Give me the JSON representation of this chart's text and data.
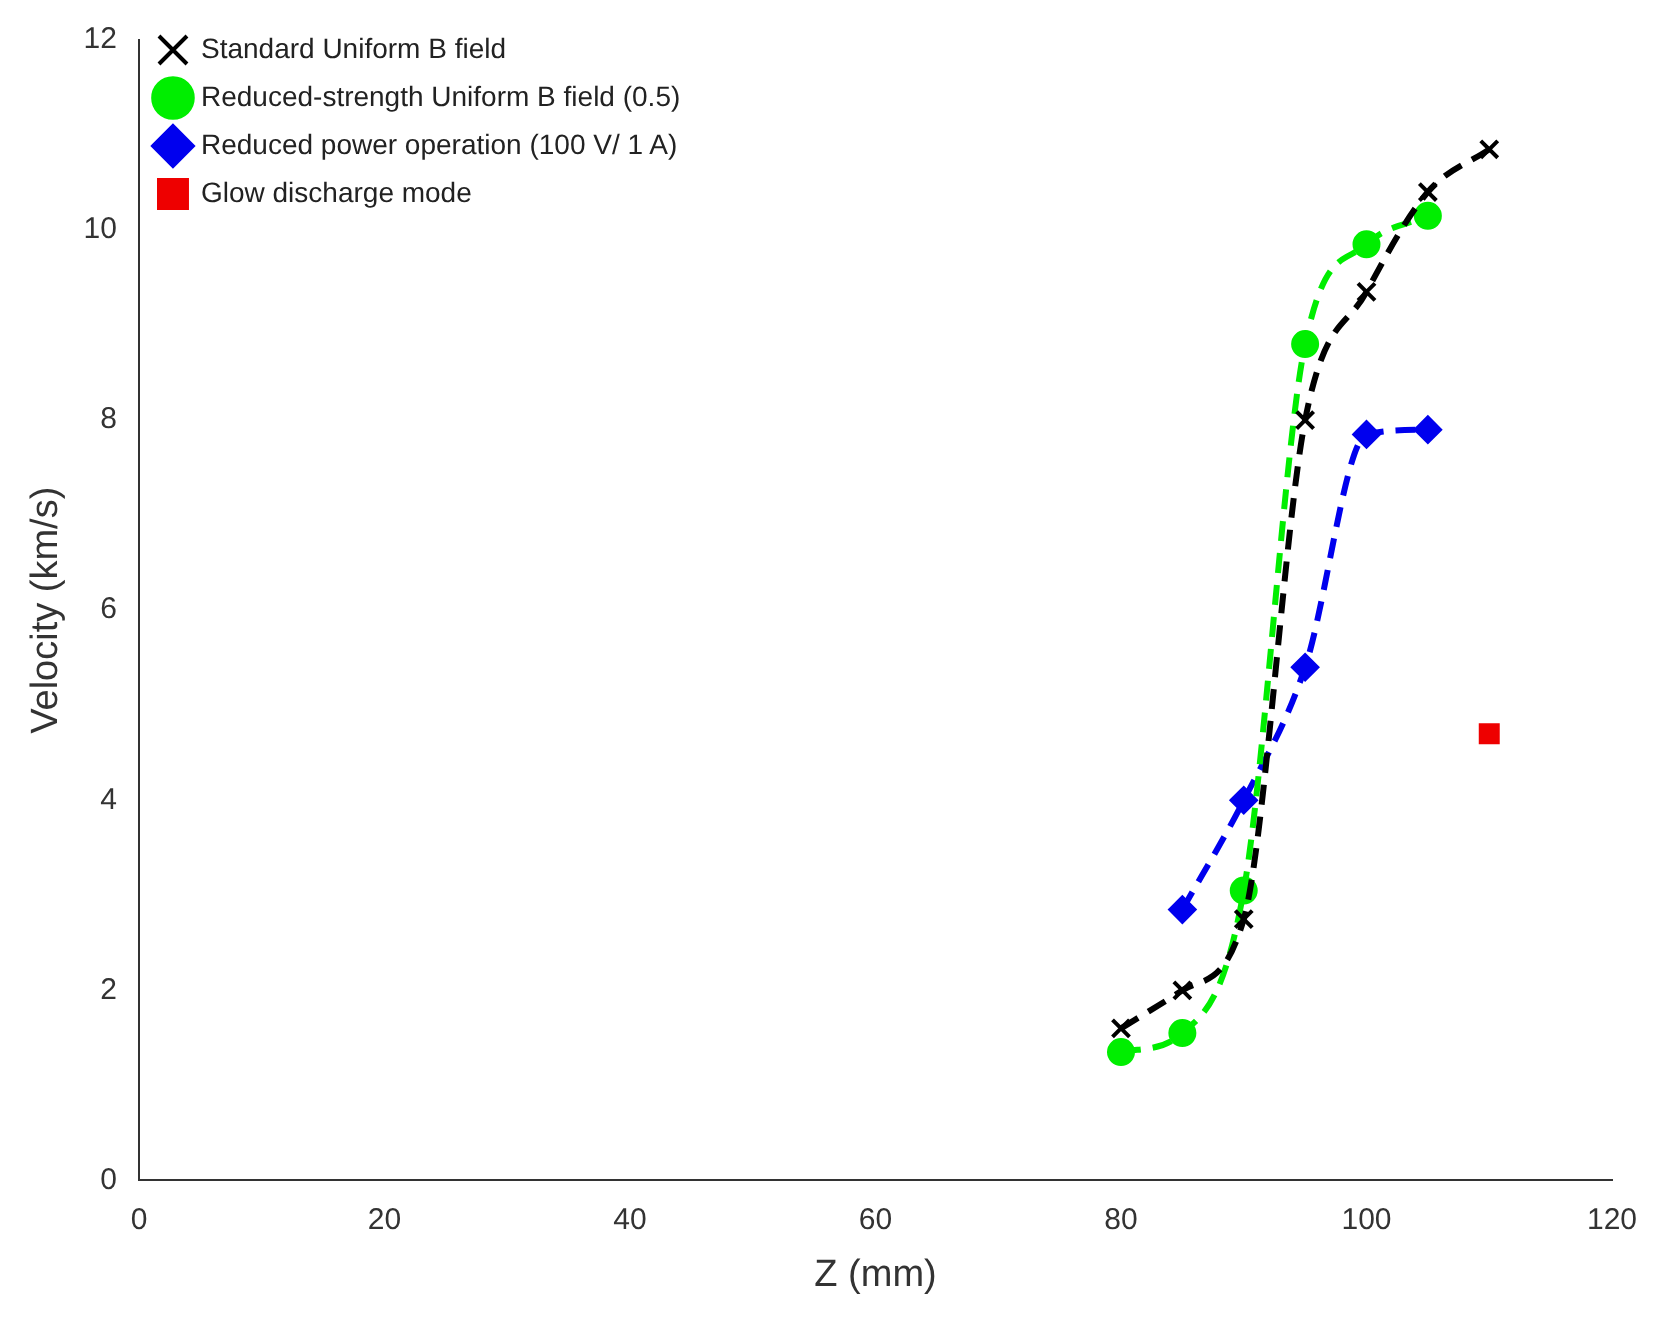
{
  "chart_data": {
    "type": "line",
    "xlabel": "Z (mm)",
    "ylabel": "Velocity (km/s)",
    "xlim": [
      0,
      120
    ],
    "xticks": [
      0,
      20,
      40,
      60,
      80,
      100,
      120
    ],
    "ylim": [
      0,
      12
    ],
    "yticks": [
      0,
      2,
      4,
      6,
      8,
      10,
      12
    ],
    "grid": false,
    "legend": "top left",
    "line_style": "dashed",
    "series": [
      {
        "name": "Standard Uniform B field",
        "color": "#000000",
        "marker": "cross",
        "x": [
          80,
          85,
          90,
          95,
          100,
          105,
          110
        ],
        "values": [
          1.6,
          2.0,
          2.75,
          8.0,
          9.35,
          10.4,
          10.85
        ]
      },
      {
        "name": "Reduced-strength Uniform B field (0.5)",
        "color": "#00ee00",
        "marker": "circle",
        "x": [
          80,
          85,
          90,
          95,
          100,
          105
        ],
        "values": [
          1.35,
          1.55,
          3.05,
          8.8,
          9.85,
          10.15
        ]
      },
      {
        "name": "Reduced power operation (100 V/ 1 A)",
        "color": "#0000ee",
        "marker": "diamond",
        "x": [
          85,
          90,
          95,
          100,
          105
        ],
        "values": [
          2.85,
          4.0,
          5.4,
          7.85,
          7.9
        ]
      },
      {
        "name": "Glow discharge mode",
        "type": "scatter",
        "color": "#ee0000",
        "marker": "square",
        "x": [
          110
        ],
        "values": [
          4.7
        ]
      }
    ]
  }
}
